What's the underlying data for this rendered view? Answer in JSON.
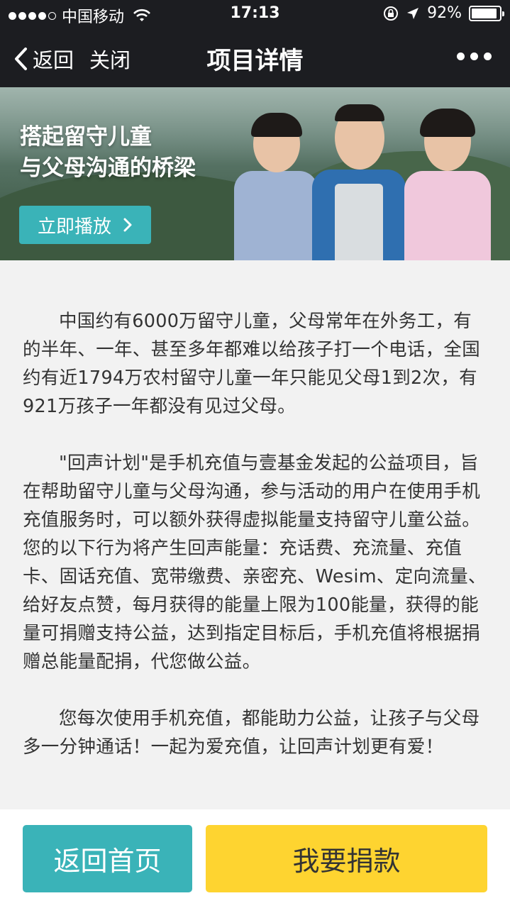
{
  "status_bar": {
    "carrier": "中国移动",
    "time": "17:13",
    "battery_text": "92%",
    "battery_level": 0.92,
    "signal_bars_filled": 4,
    "signal_bars_total": 5
  },
  "nav": {
    "back_label": "返回",
    "close_label": "关闭",
    "title": "项目详情"
  },
  "banner": {
    "title_line1": "搭起留守儿童",
    "title_line2": "与父母沟通的桥梁",
    "play_label": "立即播放"
  },
  "content": {
    "paragraphs": [
      "中国约有6000万留守儿童，父母常年在外务工，有的半年、一年、甚至多年都难以给孩子打一个电话，全国约有近1794万农村留守儿童一年只能见父母1到2次，有921万孩子一年都没有见过父母。",
      "\"回声计划\"是手机充值与壹基金发起的公益项目，旨在帮助留守儿童与父母沟通，参与活动的用户在使用手机充值服务时，可以额外获得虚拟能量支持留守儿童公益。您的以下行为将产生回声能量：充话费、充流量、充值卡、固话充值、宽带缴费、亲密充、Wesim、定向流量、给好友点赞，每月获得的能量上限为100能量，获得的能量可捐赠支持公益，达到指定目标后，手机充值将根据捐赠总能量配捐，代您做公益。",
      "您每次使用手机充值，都能助力公益，让孩子与父母多一分钟通话！一起为爱充值，让回声计划更有爱！"
    ]
  },
  "bottom": {
    "home_label": "返回首页",
    "donate_label": "我要捐款"
  },
  "colors": {
    "teal": "#3ab3b8",
    "yellow": "#fed430",
    "dark": "#1c1d21"
  }
}
